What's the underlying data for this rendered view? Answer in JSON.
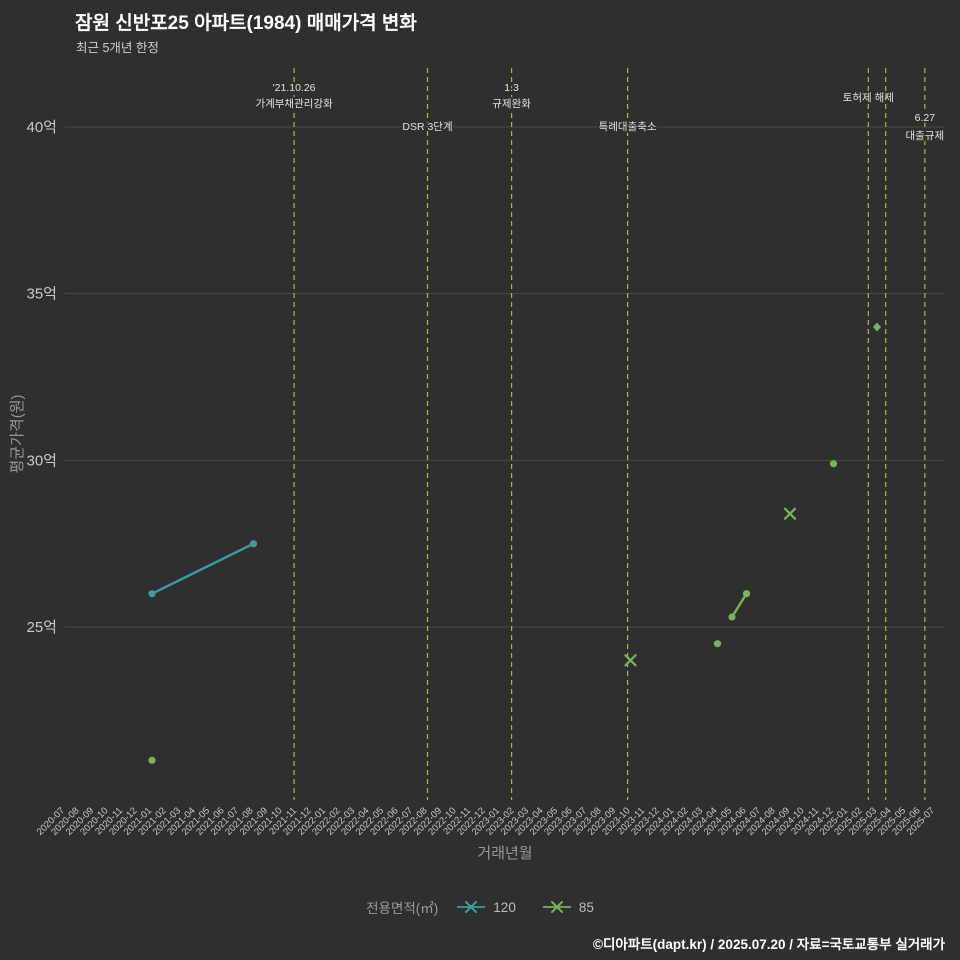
{
  "header": {
    "title": "잠원 신반포25 아파트(1984) 매매가격 변화",
    "subtitle": "최근 5개년 한정"
  },
  "legend": {
    "title": "전용면적(㎡)",
    "items": [
      {
        "label": "120",
        "color": "#3d9c9c"
      },
      {
        "label": "85",
        "color": "#7bb25c"
      }
    ]
  },
  "footer": {
    "credit": "©디아파트(dapt.kr) / 2025.07.20 / 자료=국토교통부 실거래가"
  },
  "colors": {
    "background": "#2f2f2f",
    "grid": "#4a4a4a",
    "event_line": "#b5b53a",
    "tick_text": "#c9c9c9",
    "axis_title_text": "#989898",
    "series_120": "#3d9c9c",
    "series_85": "#7bb25c"
  },
  "chart_data": {
    "type": "scatter",
    "title": "잠원 신반포25 아파트(1984) 매매가격 변화",
    "subtitle": "최근 5개년 한정",
    "xlabel": "거래년월",
    "ylabel": "평균가격(원)",
    "unit": "억",
    "grid": true,
    "legend_position": "bottom",
    "ylim": [
      19.8,
      41.8
    ],
    "y_ticks": [
      {
        "value": 25,
        "label": "25억"
      },
      {
        "value": 30,
        "label": "30억"
      },
      {
        "value": 35,
        "label": "35억"
      },
      {
        "value": 40,
        "label": "40억"
      }
    ],
    "x_categories": [
      "2020-07",
      "2020-08",
      "2020-09",
      "2020-10",
      "2020-11",
      "2020-12",
      "2021-01",
      "2021-02",
      "2021-03",
      "2021-04",
      "2021-05",
      "2021-06",
      "2021-07",
      "2021-08",
      "2021-09",
      "2021-10",
      "2021-11",
      "2021-12",
      "2022-01",
      "2022-02",
      "2022-03",
      "2022-04",
      "2022-05",
      "2022-06",
      "2022-07",
      "2022-08",
      "2022-09",
      "2022-10",
      "2022-11",
      "2022-12",
      "2023-01",
      "2023-02",
      "2023-03",
      "2023-04",
      "2023-05",
      "2023-06",
      "2023-07",
      "2023-08",
      "2023-09",
      "2023-10",
      "2023-11",
      "2023-12",
      "2024-01",
      "2024-02",
      "2024-03",
      "2024-04",
      "2024-05",
      "2024-06",
      "2024-07",
      "2024-08",
      "2024-09",
      "2024-10",
      "2024-11",
      "2024-12",
      "2025-01",
      "2025-02",
      "2025-03",
      "2025-04",
      "2025-05",
      "2025-06",
      "2025-07"
    ],
    "series": [
      {
        "name": "120",
        "color": "#3d9c9c",
        "points": [
          {
            "x": "2021-01",
            "y": 26.0,
            "marker": "dot"
          },
          {
            "x": "2021-08",
            "y": 27.5,
            "marker": "dot",
            "connect_prev": true
          }
        ]
      },
      {
        "name": "85",
        "color": "#7bb25c",
        "points": [
          {
            "x": "2021-01",
            "y": 21.0,
            "marker": "dot"
          },
          {
            "x": "2023-10",
            "y": 24.0,
            "marker": "x"
          },
          {
            "x": "2024-04",
            "y": 24.5,
            "marker": "dot"
          },
          {
            "x": "2024-05",
            "y": 25.3,
            "marker": "dot"
          },
          {
            "x": "2024-06",
            "y": 26.0,
            "marker": "dot",
            "connect_prev": true
          },
          {
            "x": "2024-09",
            "y": 28.4,
            "marker": "x"
          },
          {
            "x": "2024-12",
            "y": 29.9,
            "marker": "dot"
          },
          {
            "x": "2025-03",
            "y": 34.0,
            "marker": "diamond"
          }
        ]
      }
    ],
    "events": [
      {
        "x_index": 15.8,
        "labels": [
          [
            "'21.10.26",
            91
          ],
          [
            "가계부채관리강화",
            107
          ]
        ]
      },
      {
        "x_index": 25.0,
        "labels": [
          [
            "DSR 3단계",
            130
          ]
        ]
      },
      {
        "x_index": 30.8,
        "labels": [
          [
            "1.3",
            91
          ],
          [
            "규제완화",
            107
          ]
        ]
      },
      {
        "x_index": 38.8,
        "labels": [
          [
            "특례대출축소",
            130
          ]
        ]
      },
      {
        "x_index": 55.4,
        "labels": [
          [
            "토허제 해제",
            101
          ]
        ]
      },
      {
        "x_index": 56.6,
        "labels": []
      },
      {
        "x_index": 59.3,
        "labels": [
          [
            "6.27",
            121
          ],
          [
            "대출규제",
            139
          ]
        ]
      }
    ]
  }
}
